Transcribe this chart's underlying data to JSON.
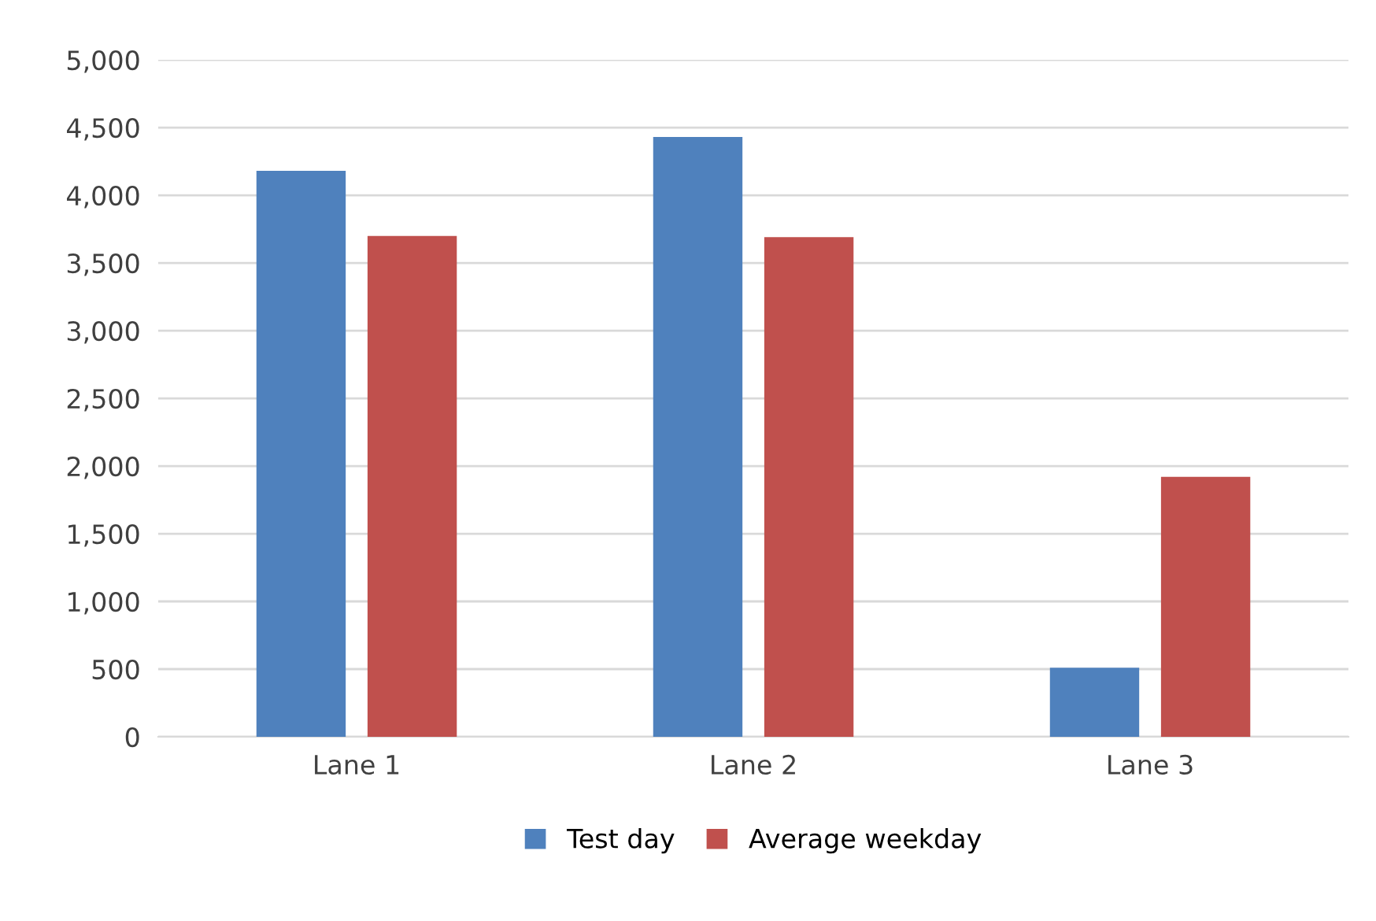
{
  "chart_data": {
    "type": "bar",
    "categories": [
      "Lane 1",
      "Lane 2",
      "Lane 3"
    ],
    "series": [
      {
        "name": "Test day",
        "color": "#4f81bd",
        "values": [
          4180,
          4430,
          510
        ]
      },
      {
        "name": "Average weekday",
        "color": "#c0504d",
        "values": [
          3700,
          3690,
          1920
        ]
      }
    ],
    "ylim": [
      0,
      5000
    ],
    "yticks": [
      {
        "value": 0,
        "label": "0"
      },
      {
        "value": 500,
        "label": "500"
      },
      {
        "value": 1000,
        "label": "1,000"
      },
      {
        "value": 1500,
        "label": "1,500"
      },
      {
        "value": 2000,
        "label": "2,000"
      },
      {
        "value": 2500,
        "label": "2,500"
      },
      {
        "value": 3000,
        "label": "3,000"
      },
      {
        "value": 3500,
        "label": "3,500"
      },
      {
        "value": 4000,
        "label": "4,000"
      },
      {
        "value": 4500,
        "label": "4,500"
      },
      {
        "value": 5000,
        "label": "5,000"
      }
    ],
    "grid": "y",
    "legend": "bottom"
  }
}
